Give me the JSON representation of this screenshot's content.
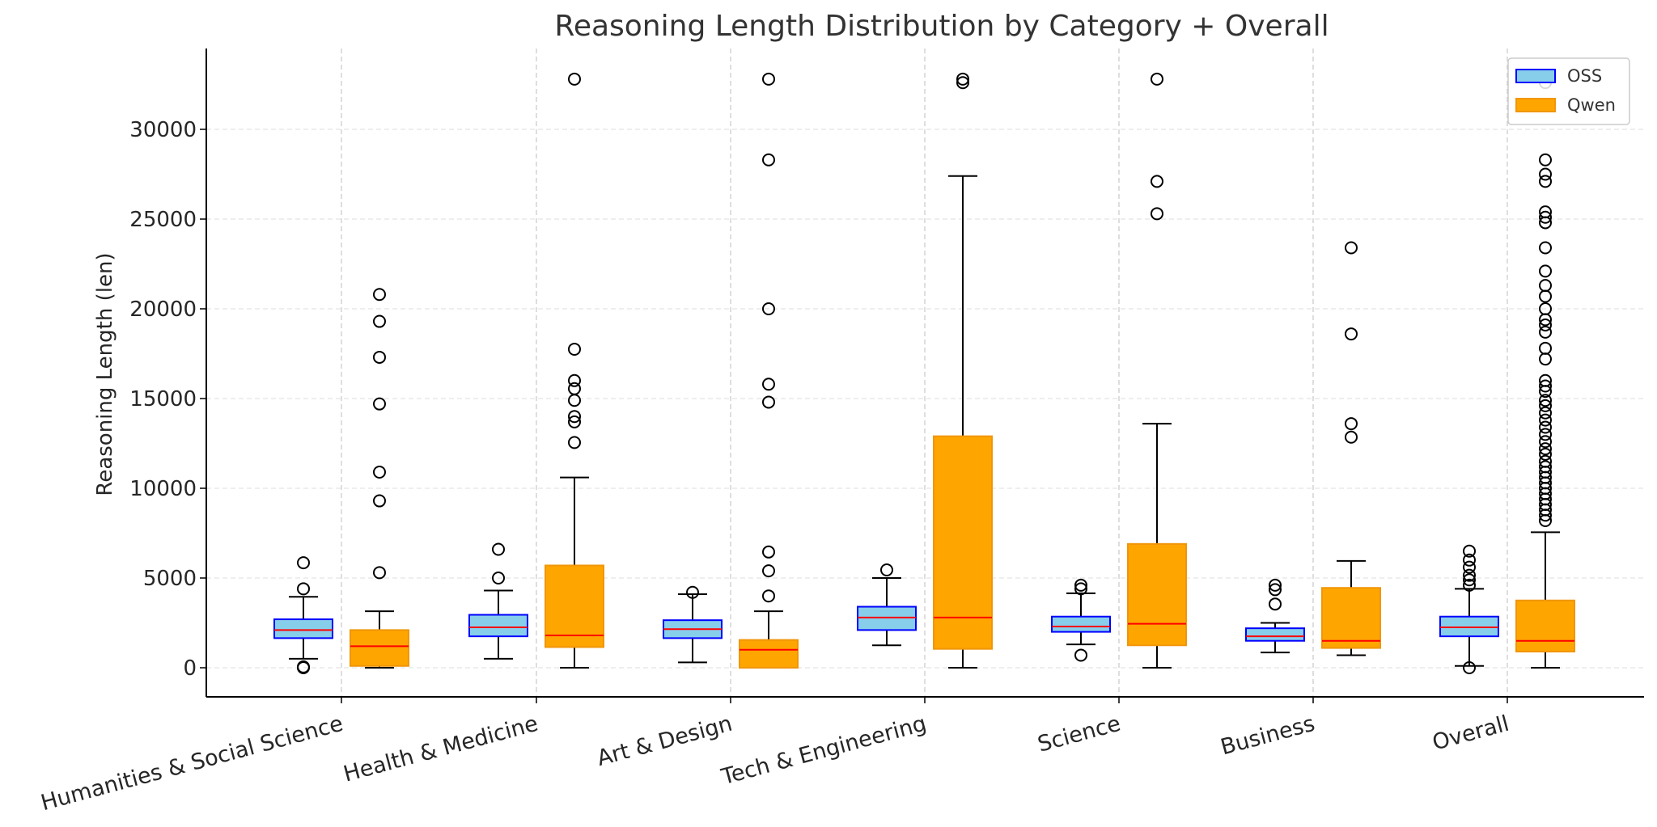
{
  "chart_data": {
    "type": "boxplot",
    "title": "Reasoning Length Distribution by Category + Overall",
    "xlabel": "",
    "ylabel": "Reasoning Length (len)",
    "ylim": [
      -1600,
      34000
    ],
    "yticks": [
      0,
      5000,
      10000,
      15000,
      20000,
      25000,
      30000
    ],
    "ytick_labels": [
      "0",
      "5000",
      "10000",
      "15000",
      "20000",
      "25000",
      "30000"
    ],
    "categories": [
      "Humanities & Social Science",
      "Health & Medicine",
      "Art & Design",
      "Tech & Engineering",
      "Science",
      "Business",
      "Overall"
    ],
    "legend": {
      "position": "top-right",
      "entries": [
        "OSS",
        "Qwen"
      ]
    },
    "colors": {
      "OSS_fill": "#87ceeb",
      "OSS_edge": "#0000ff",
      "Qwen_fill": "#ffa500",
      "Qwen_edge": "#f0960a",
      "median": "#ff0000",
      "whisker": "#000000",
      "grid": "#e3e3e3",
      "vline": "#c8c8c8"
    },
    "series": [
      {
        "name": "OSS",
        "boxes": [
          {
            "whislo": 500,
            "q1": 1650,
            "med": 2100,
            "q3": 2700,
            "whishi": 3950,
            "fliers": [
              5850,
              4400,
              50,
              0
            ]
          },
          {
            "whislo": 500,
            "q1": 1750,
            "med": 2250,
            "q3": 2950,
            "whishi": 4300,
            "fliers": [
              6600,
              5000
            ]
          },
          {
            "whislo": 300,
            "q1": 1650,
            "med": 2150,
            "q3": 2650,
            "whishi": 4100,
            "fliers": [
              4200
            ]
          },
          {
            "whislo": 1250,
            "q1": 2100,
            "med": 2800,
            "q3": 3400,
            "whishi": 5000,
            "fliers": [
              5450
            ]
          },
          {
            "whislo": 1300,
            "q1": 2000,
            "med": 2300,
            "q3": 2850,
            "whishi": 4150,
            "fliers": [
              4600,
              4400,
              700
            ]
          },
          {
            "whislo": 850,
            "q1": 1500,
            "med": 1750,
            "q3": 2200,
            "whishi": 2500,
            "fliers": [
              4600,
              4350,
              3550
            ]
          },
          {
            "whislo": 100,
            "q1": 1750,
            "med": 2250,
            "q3": 2850,
            "whishi": 4400,
            "fliers": [
              6500,
              6000,
              5600,
              5150,
              4900,
              4600,
              0
            ]
          }
        ]
      },
      {
        "name": "Qwen",
        "boxes": [
          {
            "whislo": 0,
            "q1": 100,
            "med": 1200,
            "q3": 2100,
            "whishi": 3150,
            "fliers": [
              20800,
              19300,
              17300,
              14700,
              10900,
              9300,
              5300
            ]
          },
          {
            "whislo": 0,
            "q1": 1150,
            "med": 1800,
            "q3": 5700,
            "whishi": 10600,
            "fliers": [
              32800,
              17750,
              16000,
              15550,
              14900,
              14000,
              13700,
              12550
            ]
          },
          {
            "whislo": 0,
            "q1": 0,
            "med": 1000,
            "q3": 1550,
            "whishi": 3150,
            "fliers": [
              32800,
              28300,
              20000,
              15800,
              14800,
              6450,
              5400,
              4000
            ]
          },
          {
            "whislo": 0,
            "q1": 1050,
            "med": 2800,
            "q3": 12900,
            "whishi": 27400,
            "fliers": [
              32800,
              32600
            ]
          },
          {
            "whislo": 0,
            "q1": 1250,
            "med": 2450,
            "q3": 6900,
            "whishi": 13600,
            "fliers": [
              32800,
              27100,
              25300
            ]
          },
          {
            "whislo": 700,
            "q1": 1100,
            "med": 1500,
            "q3": 4450,
            "whishi": 5950,
            "fliers": [
              23400,
              18600,
              13600,
              12850
            ]
          },
          {
            "whislo": 0,
            "q1": 900,
            "med": 1500,
            "q3": 3750,
            "whishi": 7550,
            "fliers": [
              32600,
              28300,
              27500,
              27100,
              25400,
              25100,
              24800,
              23400,
              22100,
              21300,
              20700,
              20000,
              19400,
              19100,
              18700,
              17800,
              17200,
              16000,
              15700,
              15400,
              14900,
              14600,
              14200,
              13800,
              13400,
              13000,
              12600,
              12200,
              11900,
              11500,
              11200,
              10900,
              10600,
              10300,
              10000,
              9700,
              9400,
              9100,
              8800,
              8500,
              8200
            ]
          }
        ]
      }
    ]
  }
}
